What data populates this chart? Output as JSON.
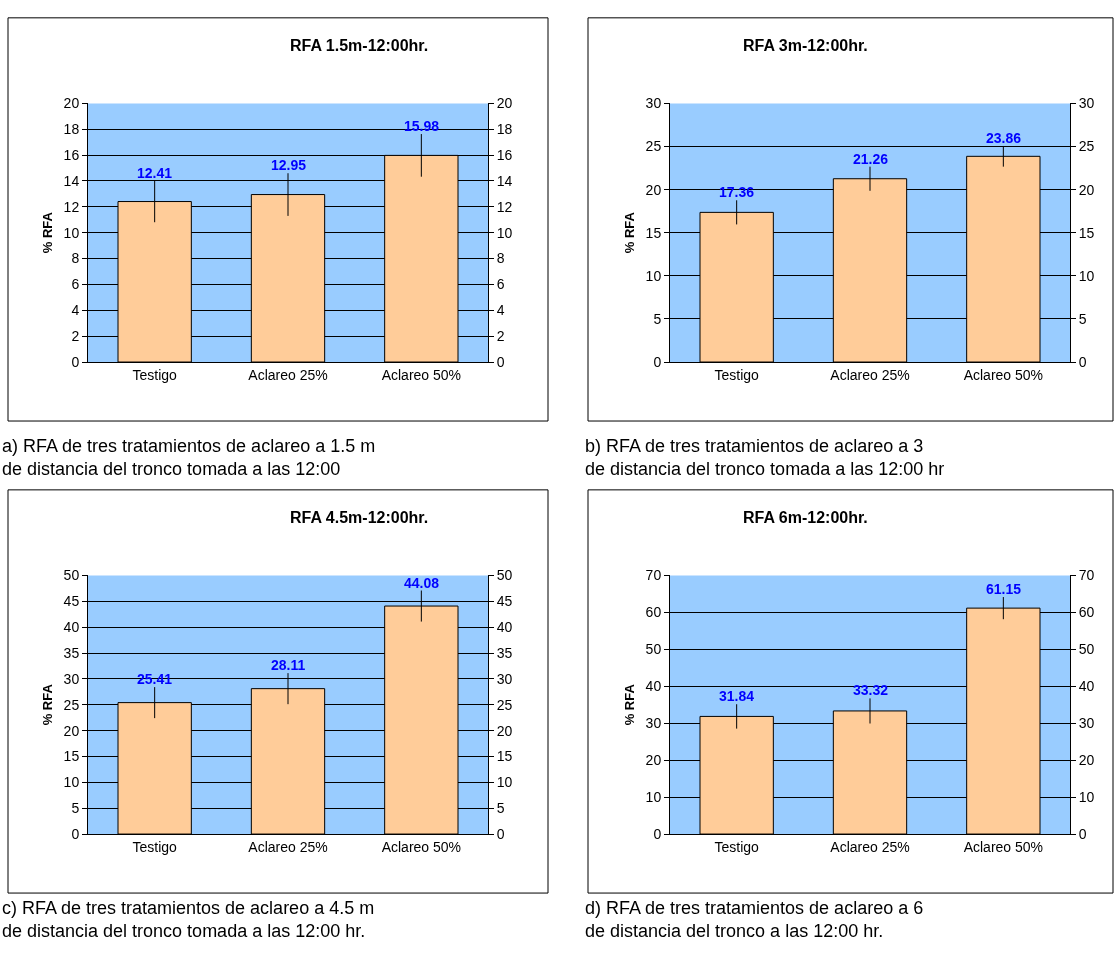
{
  "chart_data": [
    {
      "type": "bar",
      "title": "RFA 1.5m-12:00hr.",
      "ylabel": "% RFA",
      "categories": [
        "Testigo",
        "Aclareo 25%",
        "Aclareo 50%"
      ],
      "values": [
        12.41,
        12.95,
        15.98
      ],
      "errors": [
        1.6,
        1.65,
        1.65
      ],
      "color": "#ffcc99",
      "data_labels": true,
      "ylim": [
        0,
        20
      ],
      "yticks": [
        0,
        2,
        4,
        6,
        8,
        10,
        12,
        14,
        16,
        18,
        20
      ],
      "y2lim": [
        0,
        20
      ],
      "y2ticks": [
        0,
        2,
        4,
        6,
        8,
        10,
        12,
        14,
        16,
        18,
        20
      ],
      "grid": "y",
      "annotations": [
        "a) RFA de tres tratamientos de aclareo a 1.5 m de distancia del tronco tomada a las 12:00"
      ]
    },
    {
      "type": "bar",
      "title": "RFA 3m-12:00hr.",
      "ylabel": "% RFA",
      "categories": [
        "Testigo",
        "Aclareo 25%",
        "Aclareo 50%"
      ],
      "values": [
        17.36,
        21.26,
        23.86
      ],
      "errors": [
        1.4,
        1.4,
        1.2
      ],
      "color": "#ffcc99",
      "data_labels": true,
      "ylim": [
        0,
        30
      ],
      "yticks": [
        0,
        5,
        10,
        15,
        20,
        25,
        30
      ],
      "y2lim": [
        0,
        30
      ],
      "y2ticks": [
        0,
        5,
        10,
        15,
        20,
        25,
        30
      ],
      "grid": "y",
      "annotations": [
        "b) RFA de tres tratamientos de aclareo a 3 de distancia del tronco tomada a las 12:00 hr"
      ]
    },
    {
      "type": "bar",
      "title": "RFA 4.5m-12:00hr.",
      "ylabel": "% RFA",
      "categories": [
        "Testigo",
        "Aclareo 25%",
        "Aclareo 50%"
      ],
      "values": [
        25.41,
        28.11,
        44.08
      ],
      "errors": [
        3,
        3,
        3
      ],
      "color": "#ffcc99",
      "data_labels": true,
      "ylim": [
        0,
        50
      ],
      "yticks": [
        0,
        5,
        10,
        15,
        20,
        25,
        30,
        35,
        40,
        45,
        50
      ],
      "y2lim": [
        0,
        50
      ],
      "y2ticks": [
        0,
        5,
        10,
        15,
        20,
        25,
        30,
        35,
        40,
        45,
        50
      ],
      "grid": "y",
      "annotations": [
        "c) RFA de tres tratamientos de aclareo a 4.5 m de distancia del tronco tomada a las 12:00 hr."
      ]
    },
    {
      "type": "bar",
      "title": "RFA 6m-12:00hr.",
      "ylabel": "% RFA",
      "categories": [
        "Testigo",
        "Aclareo 25%",
        "Aclareo 50%"
      ],
      "values": [
        31.84,
        33.32,
        61.15
      ],
      "errors": [
        3.3,
        3.4,
        3
      ],
      "color": "#ffcc99",
      "data_labels": true,
      "ylim": [
        0,
        70
      ],
      "yticks": [
        0,
        10,
        20,
        30,
        40,
        50,
        60,
        70
      ],
      "y2lim": [
        0,
        70
      ],
      "y2ticks": [
        0,
        10,
        20,
        30,
        40,
        50,
        60,
        70
      ],
      "grid": "y",
      "annotations": [
        "d) RFA de tres tratamientos de aclareo a 6 de distancia del tronco a las 12:00 hr."
      ]
    }
  ]
}
